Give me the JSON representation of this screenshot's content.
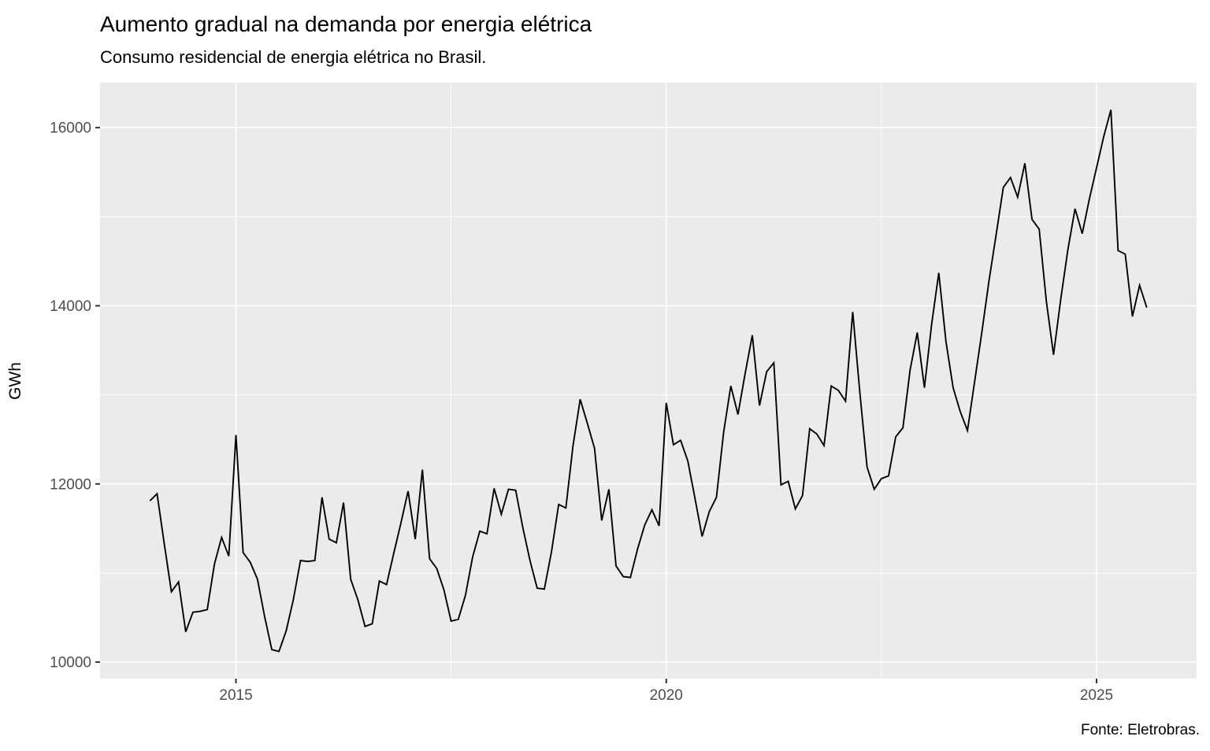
{
  "chart_data": {
    "type": "line",
    "title": "Aumento gradual na demanda por energia elétrica",
    "subtitle": "Consumo residencial de energia elétrica no Brasil.",
    "caption": "Fonte: Eletrobras.",
    "xlabel": "",
    "ylabel": "GWh",
    "legend_position": "none",
    "grid": true,
    "x_unit": "month",
    "x": [
      "2014-01",
      "2014-02",
      "2014-03",
      "2014-04",
      "2014-05",
      "2014-06",
      "2014-07",
      "2014-08",
      "2014-09",
      "2014-10",
      "2014-11",
      "2014-12",
      "2015-01",
      "2015-02",
      "2015-03",
      "2015-04",
      "2015-05",
      "2015-06",
      "2015-07",
      "2015-08",
      "2015-09",
      "2015-10",
      "2015-11",
      "2015-12",
      "2016-01",
      "2016-02",
      "2016-03",
      "2016-04",
      "2016-05",
      "2016-06",
      "2016-07",
      "2016-08",
      "2016-09",
      "2016-10",
      "2016-11",
      "2016-12",
      "2017-01",
      "2017-02",
      "2017-03",
      "2017-04",
      "2017-05",
      "2017-06",
      "2017-07",
      "2017-08",
      "2017-09",
      "2017-10",
      "2017-11",
      "2017-12",
      "2018-01",
      "2018-02",
      "2018-03",
      "2018-04",
      "2018-05",
      "2018-06",
      "2018-07",
      "2018-08",
      "2018-09",
      "2018-10",
      "2018-11",
      "2018-12",
      "2019-01",
      "2019-02",
      "2019-03",
      "2019-04",
      "2019-05",
      "2019-06",
      "2019-07",
      "2019-08",
      "2019-09",
      "2019-10",
      "2019-11",
      "2019-12",
      "2020-01",
      "2020-02",
      "2020-03",
      "2020-04",
      "2020-05",
      "2020-06",
      "2020-07",
      "2020-08",
      "2020-09",
      "2020-10",
      "2020-11",
      "2020-12",
      "2021-01",
      "2021-02",
      "2021-03",
      "2021-04",
      "2021-05",
      "2021-06",
      "2021-07",
      "2021-08",
      "2021-09",
      "2021-10",
      "2021-11",
      "2021-12",
      "2022-01",
      "2022-02",
      "2022-03",
      "2022-04",
      "2022-05",
      "2022-06",
      "2022-07",
      "2022-08",
      "2022-09",
      "2022-10",
      "2022-11",
      "2022-12",
      "2023-01",
      "2023-02",
      "2023-03",
      "2023-04",
      "2023-05",
      "2023-06",
      "2023-07",
      "2023-08",
      "2023-09",
      "2023-10",
      "2023-11",
      "2023-12",
      "2024-01",
      "2024-02",
      "2024-03",
      "2024-04",
      "2024-05",
      "2024-06",
      "2024-07",
      "2024-08",
      "2024-09",
      "2024-10",
      "2024-11",
      "2024-12",
      "2025-01",
      "2025-02",
      "2025-03",
      "2025-04",
      "2025-05",
      "2025-06",
      "2025-07",
      "2025-08"
    ],
    "values": [
      11810,
      11890,
      11330,
      10790,
      10900,
      10340,
      10560,
      10570,
      10590,
      11100,
      11400,
      11190,
      12550,
      11230,
      11120,
      10930,
      10510,
      10140,
      10120,
      10350,
      10700,
      11140,
      11130,
      11140,
      11850,
      11380,
      11340,
      11790,
      10930,
      10700,
      10400,
      10430,
      10910,
      10870,
      11220,
      11560,
      11920,
      11380,
      12160,
      11160,
      11050,
      10810,
      10460,
      10480,
      10750,
      11180,
      11470,
      11440,
      11950,
      11660,
      11940,
      11930,
      11510,
      11140,
      10830,
      10820,
      11240,
      11770,
      11730,
      12430,
      12950,
      12680,
      12400,
      11590,
      11940,
      11080,
      10960,
      10950,
      11270,
      11540,
      11710,
      11530,
      12910,
      12440,
      12490,
      12260,
      11840,
      11410,
      11690,
      11850,
      12580,
      13100,
      12780,
      13240,
      13670,
      12880,
      13260,
      13360,
      11990,
      12030,
      11720,
      11870,
      12620,
      12560,
      12430,
      13100,
      13050,
      12930,
      13930,
      13020,
      12190,
      11940,
      12060,
      12090,
      12530,
      12630,
      13280,
      13700,
      13080,
      13790,
      14370,
      13600,
      13080,
      12810,
      12600,
      13150,
      13700,
      14280,
      14800,
      15330,
      15440,
      15220,
      15600,
      14970,
      14860,
      14050,
      13450,
      14070,
      14630,
      15090,
      14810,
      15200,
      15550,
      15900,
      16200,
      14620,
      14580,
      13880,
      14230,
      13980
    ],
    "y_ticks": [
      10000,
      12000,
      14000,
      16000
    ],
    "y_minor_ticks": [
      11000,
      13000,
      15000
    ],
    "x_ticks": [
      {
        "index": 12,
        "label": "2015"
      },
      {
        "index": 72,
        "label": "2020"
      },
      {
        "index": 132,
        "label": "2025"
      }
    ],
    "x_minor_tick_indices": [
      42,
      102
    ],
    "ylim": [
      9815,
      16505
    ],
    "colors": {
      "line": "#000000",
      "panel_background": "#EBEBEB",
      "gridline": "#FFFFFF",
      "axis_text": "#4D4D4D",
      "tick_mark": "#333333",
      "title_text": "#000000"
    }
  }
}
